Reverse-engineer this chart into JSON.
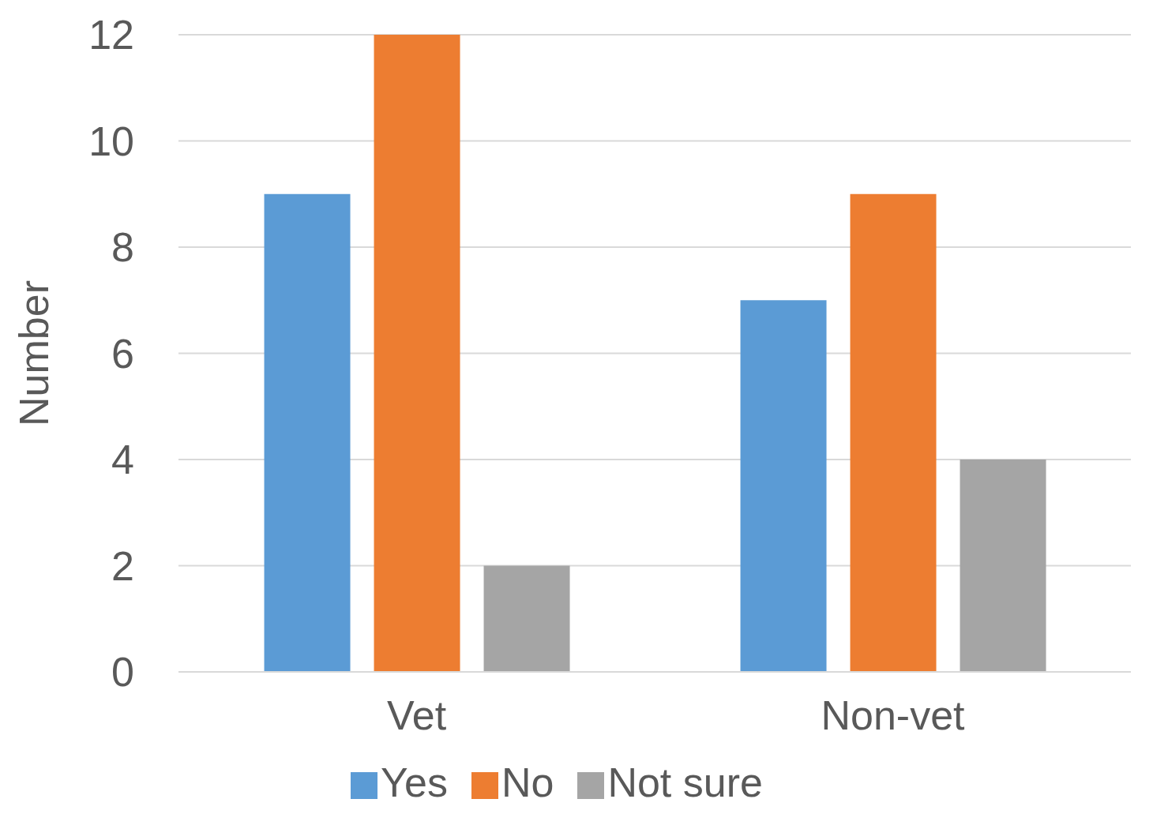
{
  "chart_data": {
    "type": "bar",
    "ylabel": "Number",
    "categories": [
      "Vet",
      "Non-vet"
    ],
    "series": [
      {
        "name": "Yes",
        "color": "#5b9bd5",
        "values": [
          9,
          7
        ]
      },
      {
        "name": "No",
        "color": "#ed7d31",
        "values": [
          12,
          9
        ]
      },
      {
        "name": "Not sure",
        "color": "#a5a5a5",
        "values": [
          2,
          4
        ]
      }
    ],
    "ylim": [
      0,
      12
    ],
    "yticks": [
      0,
      2,
      4,
      6,
      8,
      10,
      12
    ],
    "grid": "y",
    "legend": "bottom"
  }
}
